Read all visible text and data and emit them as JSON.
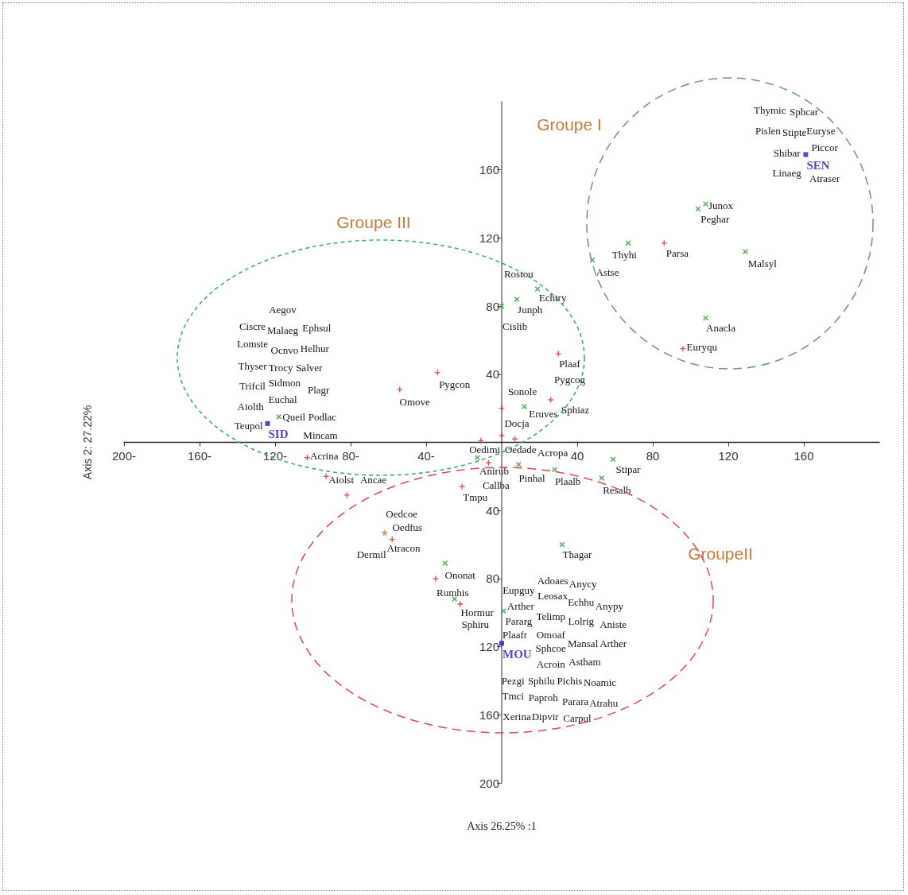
{
  "chart_data": {
    "type": "scatter",
    "xlabel": "Axis 26.25% :1",
    "ylabel": "Axis 2: 27.22%",
    "xlim": [
      -200,
      200
    ],
    "ylim": [
      -200,
      200
    ],
    "xticks": [
      {
        "value": -200,
        "label": "200-"
      },
      {
        "value": -160,
        "label": "160-"
      },
      {
        "value": -120,
        "label": "120-"
      },
      {
        "value": -80,
        "label": "80-"
      },
      {
        "value": -40,
        "label": "40-"
      },
      40,
      80,
      120,
      160
    ],
    "yticks": [
      {
        "value": -200,
        "label": "200"
      },
      {
        "value": -160,
        "label": "160"
      },
      {
        "value": -120,
        "label": "120"
      },
      {
        "value": -80,
        "label": "80"
      },
      {
        "value": -40,
        "label": "40"
      },
      40,
      80,
      120,
      160
    ],
    "series": [
      {
        "color": "#cc2b2b",
        "marker": "plus",
        "x": [
          86,
          96,
          30,
          26,
          0,
          0,
          7,
          -11,
          -7,
          -21,
          -103,
          -93,
          -82,
          -54,
          -34,
          -58,
          -35,
          -22
        ],
        "values": [
          117,
          55,
          52,
          25,
          20,
          4,
          2,
          1,
          -12,
          -26,
          -9,
          -20,
          -31,
          31,
          41,
          -57,
          -80,
          -95
        ]
      },
      {
        "color": "#3f9a3f",
        "marker": "cross",
        "x": [
          108,
          104,
          67,
          129,
          48,
          108,
          19,
          8,
          0,
          12,
          -13,
          9,
          28,
          59,
          53,
          -118,
          -30,
          -25,
          32,
          1
        ],
        "values": [
          140,
          137,
          117,
          112,
          107,
          73,
          90,
          84,
          80,
          21,
          -9,
          -13,
          -16,
          -10,
          -21,
          15,
          -71,
          -92,
          -60,
          -99
        ]
      },
      {
        "color": "#c98a2e",
        "marker": "star",
        "x": [
          -62
        ],
        "values": [
          -53
        ]
      },
      {
        "color": "#1c1cb0",
        "marker": "square",
        "x": [
          161,
          -124,
          0
        ],
        "values": [
          169,
          11,
          -118
        ],
        "value_labels": [
          "SEN",
          "SID",
          "MOU"
        ]
      }
    ],
    "annotations": [
      "Groupe I",
      "Groupe III",
      "GroupeII",
      "Thymic",
      "Sphcar",
      "Pislen",
      "Stipte",
      "Euryse",
      "Shibar",
      "Piccor",
      "Linaeg",
      "Atraser",
      "Junox",
      "Peghar",
      "Thyhi",
      "Parsa",
      "Malsyl",
      "Astse",
      "Anacla",
      "Euryqu",
      "Rostou",
      "Echtry",
      "Junph",
      "Cislib",
      "Plaaf",
      "Pygcog",
      "Sonole",
      "Sphiaz",
      "Eruves",
      "Docja",
      "Oedade",
      "Oedimi",
      "Acropa",
      "Anirub",
      "Pinhal",
      "Plaalb",
      "Stipar",
      "Resalb",
      "Callba",
      "Tmpu",
      "Aegov",
      "Ciscre",
      "Malaeg",
      "Ephsul",
      "Lomste",
      "Ocnvo",
      "Helhur",
      "Thyser",
      "Trocy",
      "Salver",
      "Trifcil",
      "Sidmon",
      "Plagr",
      "Euchal",
      "Aiolth",
      "Queil",
      "Podlac",
      "Teupol",
      "Mincam",
      "Acrina",
      "Aiolst",
      "Ancae",
      "Omove",
      "Pygcon",
      "Oedcoe",
      "Oedfus",
      "Atracon",
      "Dermil",
      "Ononat",
      "Rumhis",
      "Hormur",
      "Sphiru",
      "Thagar",
      "Eupguy",
      "Arther",
      "Pararg",
      "Plaafr",
      "Pezgi",
      "Tmci",
      "Xerina",
      "Adoaes",
      "Leosax",
      "Telimp",
      "Omoaf",
      "Sphcoe",
      "Acroin",
      "Sphilu",
      "Paproh",
      "Dipvir",
      "Anycy",
      "Echhu",
      "Lolrig",
      "Mansal",
      "Astham",
      "Pichis",
      "Parara",
      "Carpul",
      "Anypy",
      "Aniste",
      "Arther",
      "Noamic",
      "Atrahu"
    ]
  }
}
